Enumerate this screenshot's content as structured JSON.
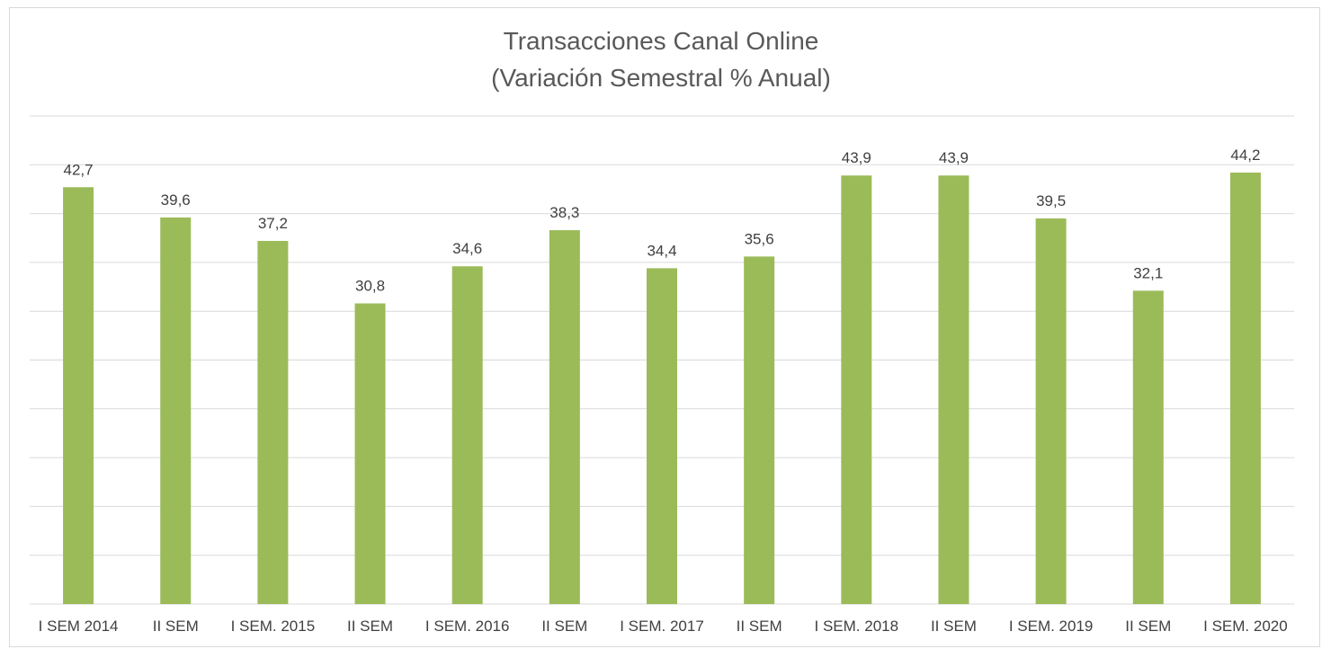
{
  "chart_data": {
    "type": "bar",
    "title": [
      "Transacciones Canal Online",
      "(Variación Semestral % Anual)"
    ],
    "categories": [
      "I SEM 2014",
      "II SEM",
      "I SEM. 2015",
      "II SEM",
      "I SEM. 2016",
      "II SEM",
      "I SEM. 2017",
      "II SEM",
      "I SEM. 2018",
      "II SEM",
      "I SEM. 2019",
      "II SEM",
      "I SEM. 2020"
    ],
    "values": [
      42.7,
      39.6,
      37.2,
      30.8,
      34.6,
      38.3,
      34.4,
      35.6,
      43.9,
      43.9,
      39.5,
      32.1,
      44.2
    ],
    "data_labels": [
      "42,7",
      "39,6",
      "37,2",
      "30,8",
      "34,6",
      "38,3",
      "34,4",
      "35,6",
      "43,9",
      "43,9",
      "39,5",
      "32,1",
      "44,2"
    ],
    "ylim": [
      0,
      50
    ],
    "y_gridline_step": 5,
    "grid": true,
    "y_axis_labels_shown": false,
    "bar_color": "#9bbb59",
    "gridline_color": "#d9d9d9",
    "legend": "none"
  }
}
